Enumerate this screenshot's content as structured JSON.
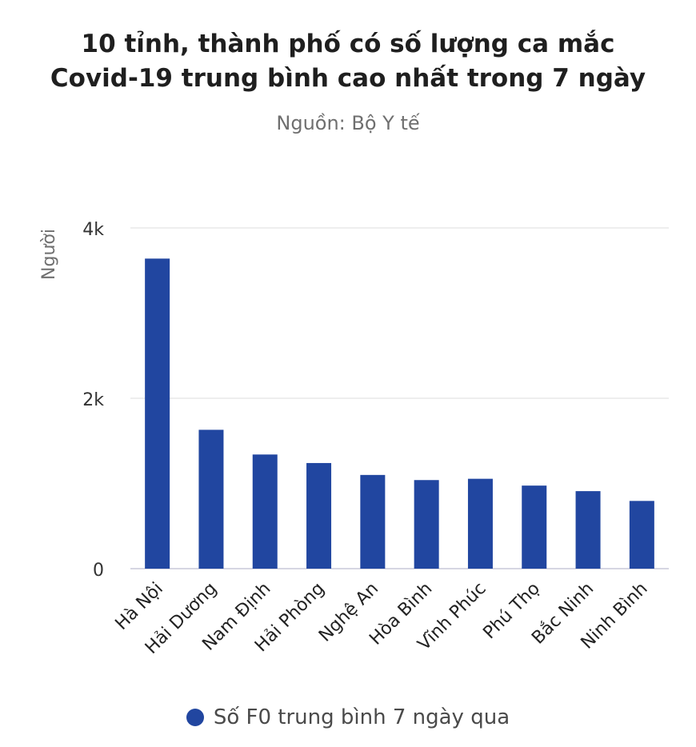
{
  "chart_data": {
    "type": "bar",
    "title_lines": [
      "10 tỉnh, thành phố có số lượng ca mắc",
      "Covid-19 trung bình cao nhất trong 7 ngày"
    ],
    "subtitle": "Nguồn: Bộ Y tế",
    "xlabel": "",
    "ylabel": "Người",
    "ylim": [
      0,
      4000
    ],
    "yticks": [
      0,
      2000,
      4000
    ],
    "ytick_labels": [
      "0",
      "2k",
      "4k"
    ],
    "grid": true,
    "legend_position": "bottom",
    "categories": [
      "Hà Nội",
      "Hải Dương",
      "Nam Định",
      "Hải Phòng",
      "Nghệ An",
      "Hòa Bình",
      "Vĩnh Phúc",
      "Phú Thọ",
      "Bắc Ninh",
      "Ninh Bình"
    ],
    "series": [
      {
        "name": "Số F0 trung bình 7 ngày qua",
        "color": "#2146a0",
        "values": [
          3640,
          1630,
          1340,
          1240,
          1100,
          1040,
          1055,
          975,
          910,
          795
        ]
      }
    ]
  }
}
